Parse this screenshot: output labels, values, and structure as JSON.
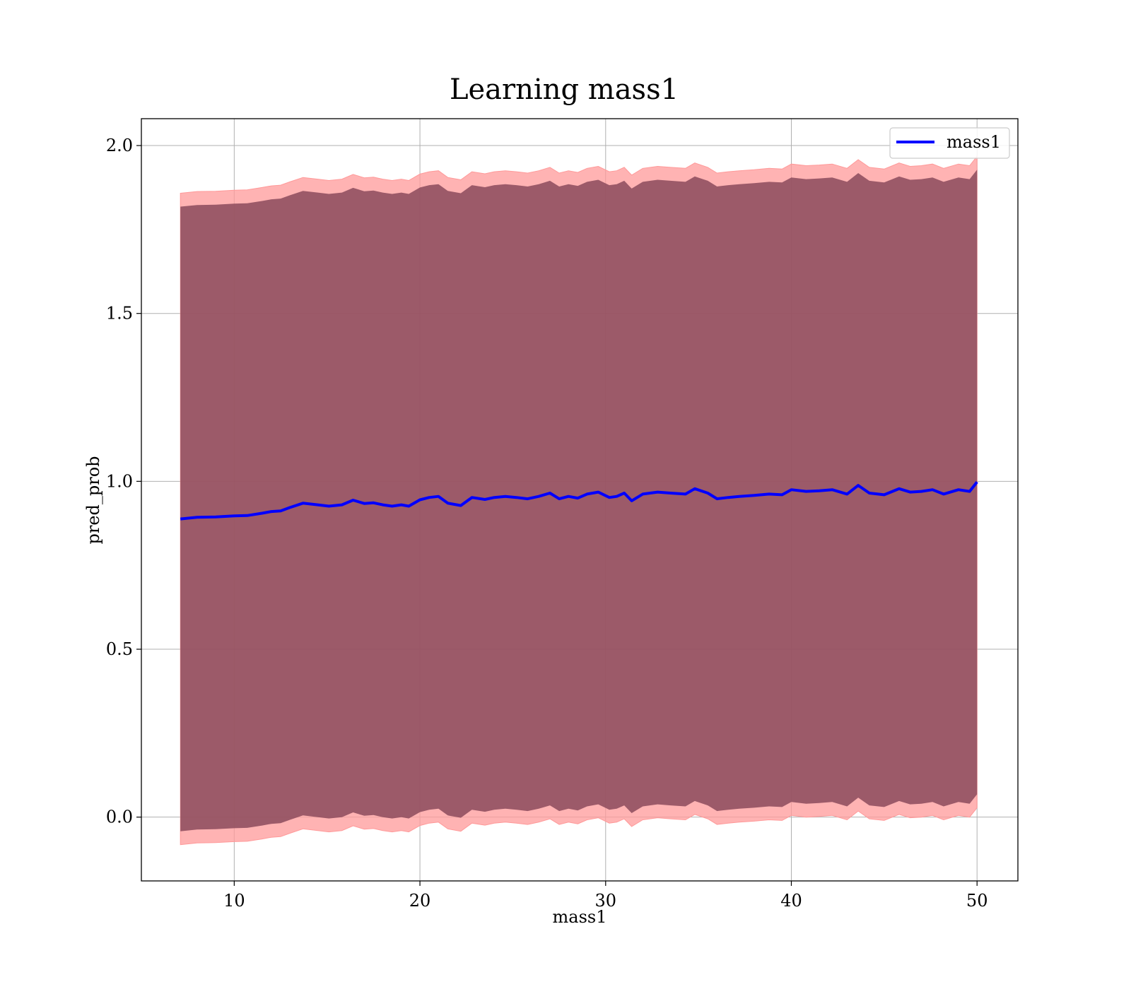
{
  "chart_data": {
    "type": "line",
    "title": "Learning mass1",
    "xlabel": "mass1",
    "ylabel": "pred_prob",
    "xlim": [
      5,
      52.2
    ],
    "ylim": [
      -0.19,
      2.08
    ],
    "xticks": [
      10,
      20,
      30,
      40,
      50
    ],
    "yticks": [
      0.0,
      0.5,
      1.0,
      1.5,
      2.0
    ],
    "xtick_labels": [
      "10",
      "20",
      "30",
      "40",
      "50"
    ],
    "ytick_labels": [
      "0.0",
      "0.5",
      "1.0",
      "1.5",
      "2.0"
    ],
    "grid": true,
    "legend": {
      "position": "top-right",
      "entries": [
        "mass1"
      ]
    },
    "series": [
      {
        "name": "mass1",
        "color": "#0000ff",
        "x": [
          7.1,
          8,
          9,
          10,
          10.7,
          11.5,
          12,
          12.5,
          13,
          13.7,
          14.5,
          15.1,
          15.8,
          16.4,
          17,
          17.5,
          18,
          18.5,
          19,
          19.4,
          20,
          20.5,
          21,
          21.5,
          22.2,
          22.8,
          23.5,
          24,
          24.6,
          25.2,
          25.8,
          26.4,
          27,
          27.5,
          28,
          28.5,
          29,
          29.6,
          30.2,
          30.6,
          31,
          31.4,
          32,
          32.8,
          33.5,
          34.3,
          34.8,
          35.5,
          36,
          36.6,
          37.2,
          38,
          38.8,
          39.5,
          40,
          40.8,
          41.5,
          42.2,
          43,
          43.6,
          44.2,
          45,
          45.8,
          46.4,
          47,
          47.6,
          48.2,
          49,
          49.6,
          50
        ],
        "values": [
          0.888,
          0.893,
          0.894,
          0.897,
          0.898,
          0.905,
          0.91,
          0.912,
          0.922,
          0.935,
          0.93,
          0.926,
          0.93,
          0.944,
          0.934,
          0.936,
          0.93,
          0.926,
          0.93,
          0.926,
          0.945,
          0.952,
          0.955,
          0.935,
          0.928,
          0.952,
          0.946,
          0.952,
          0.955,
          0.952,
          0.948,
          0.955,
          0.965,
          0.948,
          0.955,
          0.95,
          0.962,
          0.968,
          0.952,
          0.955,
          0.965,
          0.942,
          0.962,
          0.968,
          0.965,
          0.962,
          0.978,
          0.965,
          0.948,
          0.952,
          0.955,
          0.958,
          0.962,
          0.96,
          0.975,
          0.97,
          0.972,
          0.975,
          0.962,
          0.988,
          0.965,
          0.96,
          0.978,
          0.968,
          0.97,
          0.975,
          0.962,
          0.975,
          0.97,
          0.998
        ],
        "band_outer": {
          "color": "#ff9999",
          "upper_offset": 0.97,
          "lower_offset": 0.97
        },
        "band_inner": {
          "color": "#8b4a5c",
          "upper_offset": 0.93,
          "lower_offset": 0.93
        }
      }
    ]
  }
}
